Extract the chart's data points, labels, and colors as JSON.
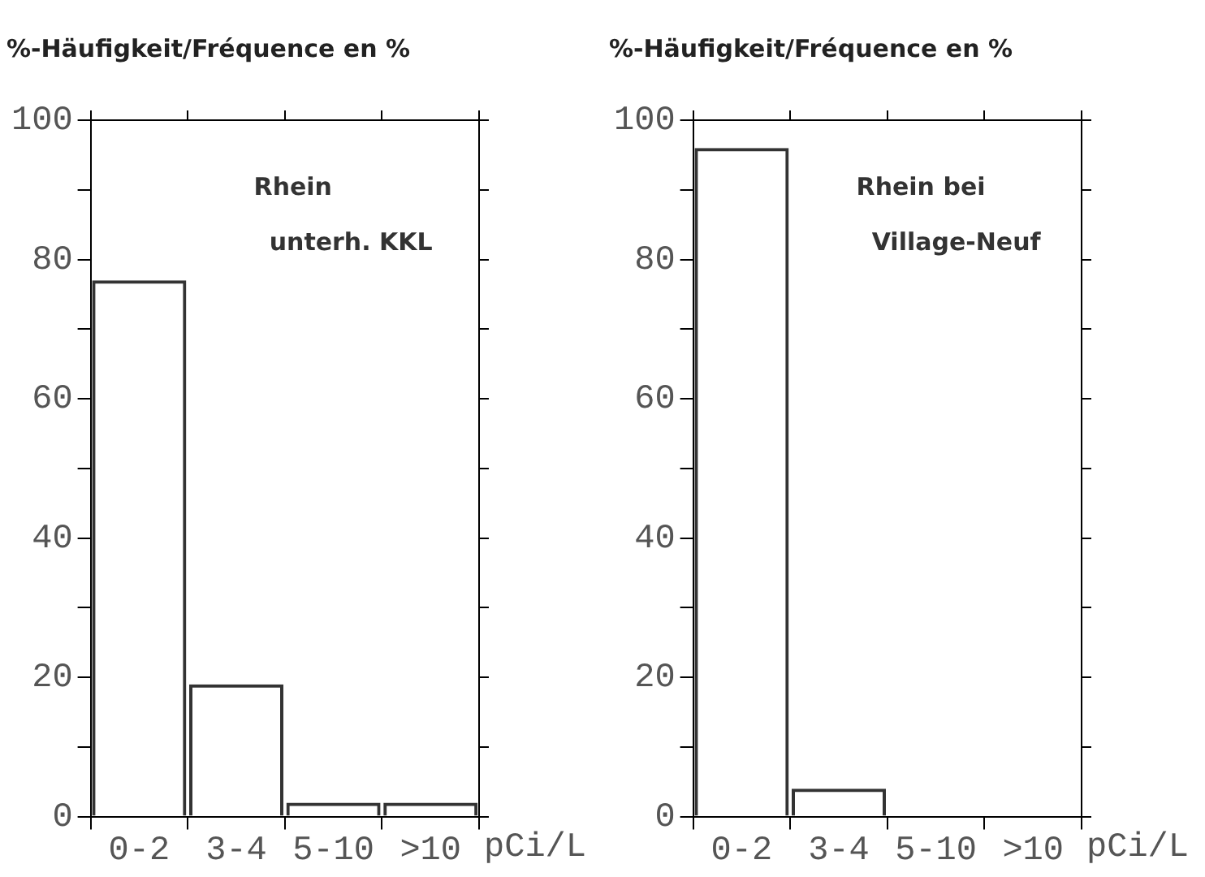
{
  "chart_data": [
    {
      "type": "bar",
      "ylabel": "%-Häufigkeit/Fréquence en %",
      "xlabel": "pCi/L",
      "categories": [
        "0-2",
        "3-4",
        "5-10",
        ">10"
      ],
      "values": [
        77,
        19,
        2,
        2
      ],
      "color": "#333333",
      "ylim": [
        0,
        100
      ],
      "yticks": [
        0,
        {
          "value": 10,
          "label": null
        },
        20,
        {
          "value": 30,
          "label": null
        },
        40,
        {
          "value": 50,
          "label": null
        },
        60,
        {
          "value": 70,
          "label": null
        },
        80,
        {
          "value": 90,
          "label": null
        },
        100
      ],
      "grid": false,
      "legend": false,
      "annotations": [
        "Rhein",
        "unterh. KKL"
      ]
    },
    {
      "type": "bar",
      "ylabel": "%-Häufigkeit/Fréquence en %",
      "xlabel": "pCi/L",
      "categories": [
        "0-2",
        "3-4",
        "5-10",
        ">10"
      ],
      "values": [
        96,
        4,
        0,
        0
      ],
      "color": "#333333",
      "ylim": [
        0,
        100
      ],
      "yticks": [
        0,
        {
          "value": 10,
          "label": null
        },
        20,
        {
          "value": 30,
          "label": null
        },
        40,
        {
          "value": 50,
          "label": null
        },
        60,
        {
          "value": 70,
          "label": null
        },
        80,
        {
          "value": 90,
          "label": null
        },
        100
      ],
      "grid": false,
      "legend": false,
      "annotations": [
        "Rhein bei",
        "Village-Neuf"
      ]
    }
  ]
}
